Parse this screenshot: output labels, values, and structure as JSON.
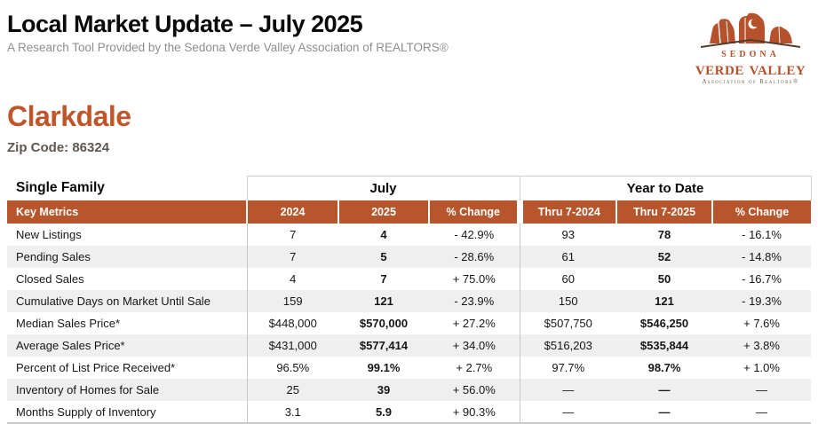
{
  "header": {
    "title": "Local Market Update – July 2025",
    "subtitle": "A Research Tool Provided by the Sedona Verde Valley Association of REALTORS®",
    "logo": {
      "line1": "sedona",
      "line2": "verde valley",
      "line3": "Association of Realtors®"
    }
  },
  "location": {
    "name": "Clarkdale",
    "zip_label": "Zip Code: 86324"
  },
  "table": {
    "section_label": "Single Family",
    "group_headers": [
      "July",
      "Year to Date"
    ],
    "columns": [
      "Key Metrics",
      "2024",
      "2025",
      "% Change",
      "Thru 7-2024",
      "Thru 7-2025",
      "% Change"
    ],
    "rows": [
      [
        "New Listings",
        "7",
        "4",
        "- 42.9%",
        "93",
        "78",
        "- 16.1%"
      ],
      [
        "Pending Sales",
        "7",
        "5",
        "- 28.6%",
        "61",
        "52",
        "- 14.8%"
      ],
      [
        "Closed Sales",
        "4",
        "7",
        "+ 75.0%",
        "60",
        "50",
        "- 16.7%"
      ],
      [
        "Cumulative Days on Market Until Sale",
        "159",
        "121",
        "- 23.9%",
        "150",
        "121",
        "- 19.3%"
      ],
      [
        "Median Sales Price*",
        "$448,000",
        "$570,000",
        "+ 27.2%",
        "$507,750",
        "$546,250",
        "+ 7.6%"
      ],
      [
        "Average Sales Price*",
        "$431,000",
        "$577,414",
        "+ 34.0%",
        "$516,203",
        "$535,844",
        "+ 3.8%"
      ],
      [
        "Percent of List Price Received*",
        "96.5%",
        "99.1%",
        "+ 2.7%",
        "97.7%",
        "98.7%",
        "+ 1.0%"
      ],
      [
        "Inventory of Homes for Sale",
        "25",
        "39",
        "+ 56.0%",
        "—",
        "—",
        "—"
      ],
      [
        "Months Supply of Inventory",
        "3.1",
        "5.9",
        "+ 90.3%",
        "—",
        "—",
        "—"
      ]
    ]
  },
  "colors": {
    "accent_orange": "#b7562d",
    "title_orange": "#c0552a",
    "stripe_gray": "#efefef",
    "border_gray": "#c9c9c9",
    "logo_rust": "#b5512b",
    "logo_brown": "#503c2c"
  }
}
